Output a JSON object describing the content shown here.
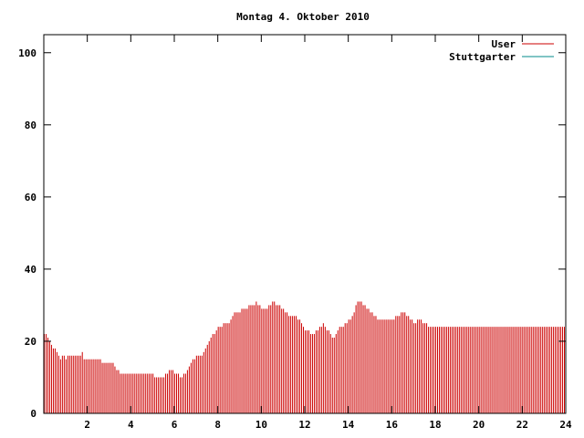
{
  "chart_data": {
    "type": "bar",
    "title": "Montag 4. Oktober 2010",
    "xlabel": "",
    "ylabel": "",
    "xlim": [
      0,
      24
    ],
    "ylim": [
      0,
      105
    ],
    "xticks": [
      2,
      4,
      6,
      8,
      10,
      12,
      14,
      16,
      18,
      20,
      22,
      24
    ],
    "yticks": [
      0,
      20,
      40,
      60,
      80,
      100
    ],
    "grid": false,
    "legend_position": "top-right",
    "bar_interval_minutes": 5,
    "series": [
      {
        "name": "User",
        "color": "#cc0000",
        "values": [
          22,
          22,
          21,
          20,
          19,
          18,
          18,
          17,
          16,
          15,
          16,
          16,
          15,
          16,
          16,
          16,
          16,
          16,
          16,
          16,
          16,
          17,
          15,
          15,
          15,
          15,
          15,
          15,
          15,
          15,
          15,
          15,
          14,
          14,
          14,
          14,
          14,
          14,
          14,
          13,
          12,
          12,
          11,
          11,
          11,
          11,
          11,
          11,
          11,
          11,
          11,
          11,
          11,
          11,
          11,
          11,
          11,
          11,
          11,
          11,
          11,
          10,
          10,
          10,
          10,
          10,
          10,
          11,
          11,
          12,
          12,
          12,
          11,
          11,
          11,
          10,
          10,
          11,
          11,
          12,
          13,
          14,
          15,
          15,
          16,
          16,
          16,
          16,
          17,
          18,
          19,
          20,
          21,
          22,
          22,
          23,
          24,
          24,
          24,
          25,
          25,
          25,
          25,
          26,
          27,
          28,
          28,
          28,
          28,
          29,
          29,
          29,
          29,
          30,
          30,
          30,
          30,
          31,
          30,
          30,
          29,
          29,
          29,
          29,
          30,
          30,
          31,
          31,
          30,
          30,
          30,
          29,
          29,
          28,
          28,
          27,
          27,
          27,
          27,
          27,
          26,
          26,
          25,
          24,
          23,
          23,
          23,
          22,
          22,
          22,
          23,
          23,
          24,
          24,
          25,
          24,
          23,
          23,
          22,
          21,
          21,
          22,
          23,
          24,
          24,
          24,
          25,
          25,
          26,
          26,
          27,
          28,
          30,
          31,
          31,
          31,
          30,
          30,
          29,
          29,
          28,
          28,
          27,
          27,
          26,
          26,
          26,
          26,
          26,
          26,
          26,
          26,
          26,
          26,
          27,
          27,
          27,
          28,
          28,
          28,
          27,
          27,
          26,
          26,
          25,
          25,
          26,
          26,
          26,
          25,
          25,
          25,
          24,
          24,
          24,
          24,
          24,
          24,
          24,
          24,
          24,
          24,
          24,
          24,
          24,
          24,
          24,
          24,
          24,
          24,
          24,
          24,
          24,
          24,
          24,
          24,
          24,
          24,
          24,
          24,
          24,
          24,
          24,
          24,
          24,
          24,
          24,
          24,
          24,
          24,
          24,
          24,
          24,
          24,
          24,
          24,
          24,
          24,
          24,
          24,
          24,
          24,
          24,
          24,
          24,
          24,
          24,
          24,
          24,
          24,
          24,
          24,
          24,
          24,
          24,
          24,
          24,
          24,
          24,
          24,
          24,
          24,
          24,
          24,
          24,
          24,
          24,
          24
        ]
      },
      {
        "name": "Stuttgarter",
        "color": "#008b8b",
        "values": []
      }
    ]
  }
}
